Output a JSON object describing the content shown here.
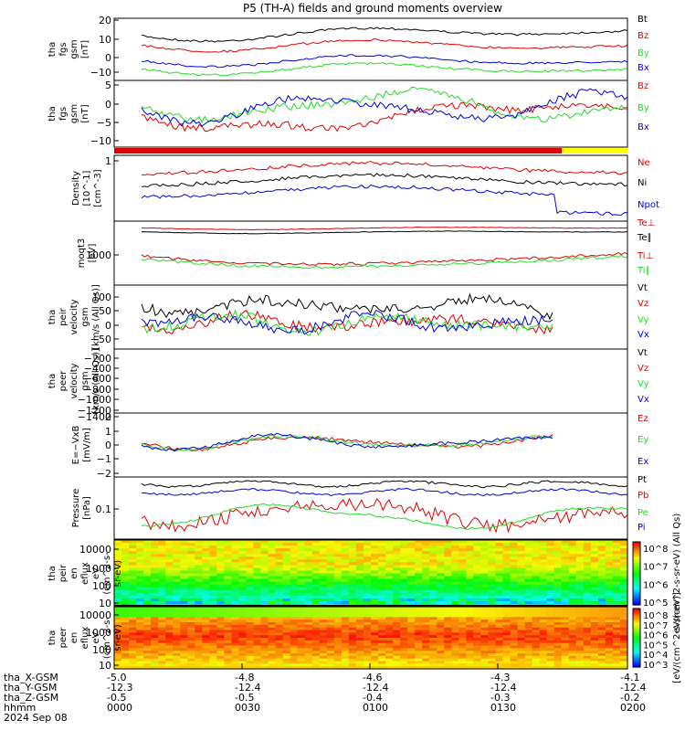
{
  "title": "P5 (TH-A) fields and ground moments overview",
  "colors": {
    "black": "#000000",
    "red": "#e00000",
    "green": "#22dd22",
    "blue": "#0000dd",
    "yellow": "#ffff00"
  },
  "chart_data": [
    {
      "type": "line",
      "panel": "tha_fgs_gsm_1",
      "ylabel": [
        "tha",
        "fgs",
        "gsm",
        "[nT]"
      ],
      "yticks": [
        "20",
        "10",
        "0",
        "−10"
      ],
      "ylim": [
        -12,
        24
      ],
      "series": [
        {
          "name": "Bt",
          "color": "#000000"
        },
        {
          "name": "Bz",
          "color": "#e00000"
        },
        {
          "name": "By",
          "color": "#22dd22"
        },
        {
          "name": "Bx",
          "color": "#0000dd"
        }
      ]
    },
    {
      "type": "line",
      "panel": "tha_fgs_gsm_2",
      "ylabel": [
        "tha",
        "fgs",
        "gsm",
        "[nT]"
      ],
      "yticks": [
        "5",
        "0",
        "−5",
        "−10"
      ],
      "ylim": [
        -12,
        6
      ],
      "series": [
        {
          "name": "Bz",
          "color": "#e00000"
        },
        {
          "name": "By",
          "color": "#22dd22"
        },
        {
          "name": "Bx",
          "color": "#0000dd"
        }
      ]
    },
    {
      "type": "line",
      "panel": "density",
      "ylabel": [
        "Density",
        "[10^-1]",
        "[cm^-3]"
      ],
      "yticks": [
        "1"
      ],
      "series": [
        {
          "name": "Ne",
          "color": "#e00000"
        },
        {
          "name": "Ni",
          "color": "#000000"
        },
        {
          "name": "Npot",
          "color": "#0000dd"
        }
      ]
    },
    {
      "type": "line",
      "panel": "temperature",
      "ylabel": [
        "moqt3",
        "[eV]"
      ],
      "yticks": [
        "1000"
      ],
      "series": [
        {
          "name": "Te⊥",
          "color": "#e00000"
        },
        {
          "name": "Te∥",
          "color": "#000000"
        },
        {
          "name": "Ti⊥",
          "color": "#e00000"
        },
        {
          "name": "Ti∥",
          "color": "#22dd22"
        }
      ]
    },
    {
      "type": "line",
      "panel": "peir_velocity",
      "ylabel": [
        "tha",
        "peir",
        "velocity",
        "gsm",
        "[km/s (All Qs)]"
      ],
      "yticks": [
        "100",
        "50",
        "0",
        "−50"
      ],
      "ylim": [
        -75,
        140
      ],
      "series": [
        {
          "name": "Vt",
          "color": "#000000"
        },
        {
          "name": "Vz",
          "color": "#e00000"
        },
        {
          "name": "Vy",
          "color": "#22dd22"
        },
        {
          "name": "Vx",
          "color": "#0000dd"
        }
      ]
    },
    {
      "type": "line",
      "panel": "peer_velocity",
      "ylabel": [
        "tha",
        "peer",
        "velocity",
        "gsm",
        "[km/s (All Qs)]"
      ],
      "yticks": [
        "−200",
        "−400",
        "−600",
        "−800",
        "−1000",
        "−1200",
        "−1400"
      ],
      "ylim": [
        -1450,
        -100
      ],
      "series": [
        {
          "name": "Vt",
          "color": "#000000"
        },
        {
          "name": "Vz",
          "color": "#e00000"
        },
        {
          "name": "Vy",
          "color": "#22dd22"
        },
        {
          "name": "Vx",
          "color": "#0000dd"
        }
      ]
    },
    {
      "type": "line",
      "panel": "efield",
      "ylabel": [
        "E=−VxB",
        "[mV/m]"
      ],
      "yticks": [
        "2",
        "1",
        "0",
        "−1",
        "−2"
      ],
      "ylim": [
        -2.2,
        2.4
      ],
      "series": [
        {
          "name": "Ez",
          "color": "#e00000"
        },
        {
          "name": "Ey",
          "color": "#22dd22"
        },
        {
          "name": "Ex",
          "color": "#0000dd"
        }
      ]
    },
    {
      "type": "line",
      "panel": "pressure",
      "ylabel": [
        "Pressure",
        "[nPa]"
      ],
      "yticks": [
        "0.1"
      ],
      "series": [
        {
          "name": "Pt",
          "color": "#000000"
        },
        {
          "name": "Pb",
          "color": "#e00000"
        },
        {
          "name": "Pe",
          "color": "#22dd22"
        },
        {
          "name": "Pi",
          "color": "#0000dd"
        }
      ]
    },
    {
      "type": "heatmap",
      "panel": "peir_en_eflux",
      "ylabel": [
        "tha",
        "peir",
        "en",
        "eflux",
        "eV",
        "(cm^2-s-",
        "sr-eV)"
      ],
      "yticks": [
        "10000",
        "1000",
        "100",
        "10"
      ],
      "colorbar_label": "eV/(cm^2-s-sr-eV) (All Qs)",
      "colorbar_ticks": [
        "10^8",
        "10^7",
        "10^6",
        "10^5"
      ]
    },
    {
      "type": "heatmap",
      "panel": "peer_en_eflux",
      "ylabel": [
        "tha",
        "peer",
        "en",
        "eflux",
        "eV",
        "(cm^2-s-",
        "sr-eV)"
      ],
      "yticks": [
        "10000",
        "1000",
        "100",
        "10"
      ],
      "colorbar_label": "[eV/(cm^2-s-sr-eV)]",
      "colorbar_ticks": [
        "10^8",
        "10^7",
        "10^6",
        "10^5",
        "10^4",
        "10^3"
      ]
    }
  ],
  "x_axis": {
    "row_labels": [
      "tha_X-GSM",
      "tha_Y-GSM",
      "tha_Z-GSM",
      "hhmm",
      "2024 Sep 08"
    ],
    "ticks": [
      {
        "x": "-5.0",
        "y": "-12.3",
        "z": "-0.5",
        "t": "0000"
      },
      {
        "x": "-4.8",
        "y": "-12.4",
        "z": "-0.5",
        "t": "0030"
      },
      {
        "x": "-4.6",
        "y": "-12.4",
        "z": "-0.4",
        "t": "0100"
      },
      {
        "x": "-4.3",
        "y": "-12.4",
        "z": "-0.3",
        "t": "0130"
      },
      {
        "x": "-4.1",
        "y": "-12.4",
        "z": "-0.2",
        "t": "0200"
      }
    ]
  }
}
